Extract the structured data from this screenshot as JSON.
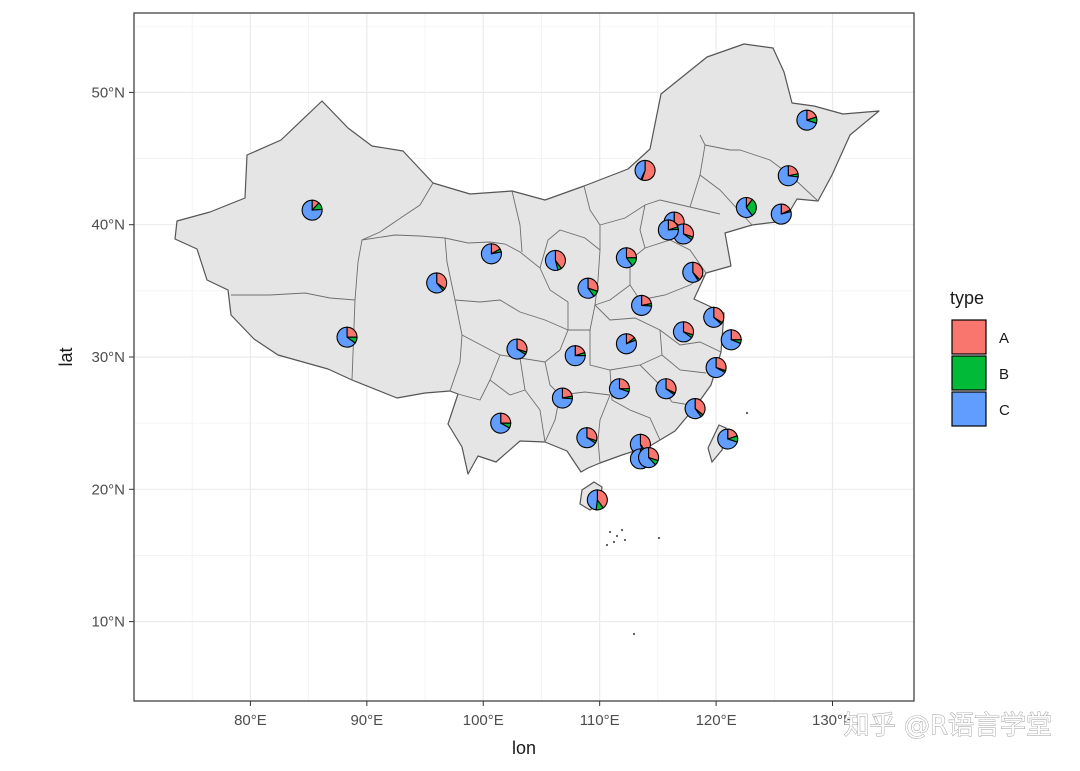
{
  "chart_data": {
    "type": "scatter",
    "subtype": "map-with-pie-glyphs",
    "xlabel": "lon",
    "ylabel": "lat",
    "xlim": [
      70,
      137
    ],
    "ylim": [
      4,
      56
    ],
    "x_ticks": [
      80,
      90,
      100,
      110,
      120,
      130
    ],
    "x_tick_labels": [
      "80°E",
      "90°E",
      "100°E",
      "110°E",
      "120°E",
      "130°E"
    ],
    "y_ticks": [
      10,
      20,
      30,
      40,
      50
    ],
    "y_tick_labels": [
      "10°N",
      "20°N",
      "30°N",
      "40°N",
      "50°N"
    ],
    "grid": true,
    "legend": {
      "title": "type",
      "position": "right",
      "entries": [
        {
          "label": "A",
          "color": "#F8766D"
        },
        {
          "label": "B",
          "color": "#00BA38"
        },
        {
          "label": "C",
          "color": "#619CFF"
        }
      ]
    },
    "pies": [
      {
        "lon": 85.3,
        "lat": 41.1,
        "A": 0.12,
        "B": 0.12,
        "C": 0.76
      },
      {
        "lon": 88.3,
        "lat": 31.5,
        "A": 0.25,
        "B": 0.1,
        "C": 0.65
      },
      {
        "lon": 96.0,
        "lat": 35.6,
        "A": 0.35,
        "B": 0.04,
        "C": 0.61
      },
      {
        "lon": 100.7,
        "lat": 37.8,
        "A": 0.17,
        "B": 0.05,
        "C": 0.78
      },
      {
        "lon": 106.2,
        "lat": 37.3,
        "A": 0.4,
        "B": 0.06,
        "C": 0.54
      },
      {
        "lon": 113.9,
        "lat": 44.1,
        "A": 0.55,
        "B": 0.02,
        "C": 0.43
      },
      {
        "lon": 127.8,
        "lat": 47.9,
        "A": 0.2,
        "B": 0.1,
        "C": 0.7
      },
      {
        "lon": 126.2,
        "lat": 43.7,
        "A": 0.22,
        "B": 0.05,
        "C": 0.73
      },
      {
        "lon": 125.6,
        "lat": 40.8,
        "A": 0.18,
        "B": 0.03,
        "C": 0.79
      },
      {
        "lon": 122.6,
        "lat": 41.3,
        "A": 0.1,
        "B": 0.3,
        "C": 0.6
      },
      {
        "lon": 116.4,
        "lat": 40.2,
        "A": 0.35,
        "B": 0.04,
        "C": 0.61
      },
      {
        "lon": 117.2,
        "lat": 39.3,
        "A": 0.3,
        "B": 0.05,
        "C": 0.65
      },
      {
        "lon": 115.9,
        "lat": 39.6,
        "A": 0.2,
        "B": 0.04,
        "C": 0.76
      },
      {
        "lon": 118.0,
        "lat": 36.4,
        "A": 0.38,
        "B": 0.03,
        "C": 0.59
      },
      {
        "lon": 112.3,
        "lat": 37.5,
        "A": 0.25,
        "B": 0.15,
        "C": 0.6
      },
      {
        "lon": 109.0,
        "lat": 35.2,
        "A": 0.3,
        "B": 0.1,
        "C": 0.6
      },
      {
        "lon": 113.6,
        "lat": 33.9,
        "A": 0.22,
        "B": 0.04,
        "C": 0.74
      },
      {
        "lon": 119.8,
        "lat": 33.0,
        "A": 0.34,
        "B": 0.03,
        "C": 0.63
      },
      {
        "lon": 117.2,
        "lat": 31.9,
        "A": 0.3,
        "B": 0.05,
        "C": 0.65
      },
      {
        "lon": 121.3,
        "lat": 31.3,
        "A": 0.25,
        "B": 0.06,
        "C": 0.69
      },
      {
        "lon": 120.0,
        "lat": 29.2,
        "A": 0.3,
        "B": 0.03,
        "C": 0.67
      },
      {
        "lon": 112.3,
        "lat": 31.0,
        "A": 0.15,
        "B": 0.04,
        "C": 0.81
      },
      {
        "lon": 107.9,
        "lat": 30.1,
        "A": 0.2,
        "B": 0.05,
        "C": 0.75
      },
      {
        "lon": 102.9,
        "lat": 30.6,
        "A": 0.3,
        "B": 0.04,
        "C": 0.66
      },
      {
        "lon": 115.7,
        "lat": 27.6,
        "A": 0.32,
        "B": 0.03,
        "C": 0.65
      },
      {
        "lon": 111.7,
        "lat": 27.6,
        "A": 0.25,
        "B": 0.05,
        "C": 0.7
      },
      {
        "lon": 106.8,
        "lat": 26.9,
        "A": 0.22,
        "B": 0.04,
        "C": 0.74
      },
      {
        "lon": 118.2,
        "lat": 26.1,
        "A": 0.36,
        "B": 0.04,
        "C": 0.6
      },
      {
        "lon": 101.5,
        "lat": 25.0,
        "A": 0.25,
        "B": 0.08,
        "C": 0.67
      },
      {
        "lon": 108.9,
        "lat": 23.9,
        "A": 0.3,
        "B": 0.04,
        "C": 0.66
      },
      {
        "lon": 113.5,
        "lat": 23.4,
        "A": 0.4,
        "B": 0.05,
        "C": 0.55
      },
      {
        "lon": 113.5,
        "lat": 22.3,
        "A": 0.2,
        "B": 0.05,
        "C": 0.75
      },
      {
        "lon": 114.2,
        "lat": 22.4,
        "A": 0.3,
        "B": 0.08,
        "C": 0.62
      },
      {
        "lon": 121.0,
        "lat": 23.8,
        "A": 0.2,
        "B": 0.1,
        "C": 0.7
      },
      {
        "lon": 109.8,
        "lat": 19.2,
        "A": 0.4,
        "B": 0.12,
        "C": 0.48
      }
    ],
    "watermark": "知乎 @R语言学堂"
  }
}
